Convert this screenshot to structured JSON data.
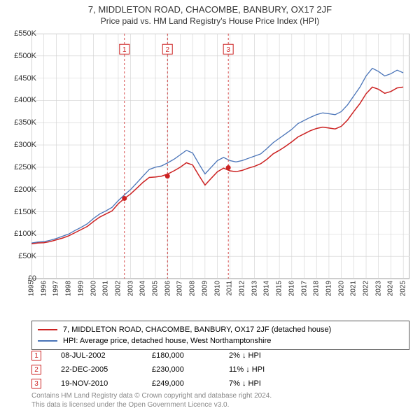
{
  "title": "7, MIDDLETON ROAD, CHACOMBE, BANBURY, OX17 2JF",
  "subtitle": "Price paid vs. HM Land Registry's House Price Index (HPI)",
  "chart": {
    "type": "line",
    "background_color": "#ffffff",
    "grid_color": "#d0d0d0",
    "plot_border_color": "#666666",
    "x_start_year": 1995,
    "x_end_year": 2025.5,
    "xticks": [
      1995,
      1996,
      1997,
      1998,
      1999,
      2000,
      2001,
      2002,
      2003,
      2004,
      2005,
      2006,
      2007,
      2008,
      2009,
      2010,
      2011,
      2012,
      2013,
      2014,
      2015,
      2016,
      2017,
      2018,
      2019,
      2020,
      2021,
      2022,
      2023,
      2024,
      2025
    ],
    "ylim": [
      0,
      550000
    ],
    "ytick_step": 50000,
    "ytick_labels": [
      "£0",
      "£50K",
      "£100K",
      "£150K",
      "£200K",
      "£250K",
      "£300K",
      "£350K",
      "£400K",
      "£450K",
      "£500K",
      "£550K"
    ],
    "series": [
      {
        "name": "hpi",
        "color": "#4a74b8",
        "width": 1.3,
        "points": [
          [
            1995.0,
            80000
          ],
          [
            1995.5,
            82000
          ],
          [
            1996.0,
            83000
          ],
          [
            1996.5,
            86000
          ],
          [
            1997.0,
            90000
          ],
          [
            1997.5,
            95000
          ],
          [
            1998.0,
            100000
          ],
          [
            1998.5,
            108000
          ],
          [
            1999.0,
            115000
          ],
          [
            1999.5,
            123000
          ],
          [
            2000.0,
            135000
          ],
          [
            2000.5,
            145000
          ],
          [
            2001.0,
            152000
          ],
          [
            2001.5,
            160000
          ],
          [
            2002.0,
            175000
          ],
          [
            2002.5,
            188000
          ],
          [
            2003.0,
            200000
          ],
          [
            2003.5,
            215000
          ],
          [
            2004.0,
            230000
          ],
          [
            2004.5,
            245000
          ],
          [
            2005.0,
            250000
          ],
          [
            2005.5,
            253000
          ],
          [
            2006.0,
            260000
          ],
          [
            2006.5,
            268000
          ],
          [
            2007.0,
            278000
          ],
          [
            2007.5,
            288000
          ],
          [
            2008.0,
            282000
          ],
          [
            2008.5,
            258000
          ],
          [
            2009.0,
            235000
          ],
          [
            2009.5,
            250000
          ],
          [
            2010.0,
            265000
          ],
          [
            2010.5,
            272000
          ],
          [
            2011.0,
            265000
          ],
          [
            2011.5,
            262000
          ],
          [
            2012.0,
            265000
          ],
          [
            2012.5,
            270000
          ],
          [
            2013.0,
            275000
          ],
          [
            2013.5,
            280000
          ],
          [
            2014.0,
            292000
          ],
          [
            2014.5,
            305000
          ],
          [
            2015.0,
            315000
          ],
          [
            2015.5,
            325000
          ],
          [
            2016.0,
            335000
          ],
          [
            2016.5,
            348000
          ],
          [
            2017.0,
            355000
          ],
          [
            2017.5,
            362000
          ],
          [
            2018.0,
            368000
          ],
          [
            2018.5,
            372000
          ],
          [
            2019.0,
            370000
          ],
          [
            2019.5,
            368000
          ],
          [
            2020.0,
            375000
          ],
          [
            2020.5,
            390000
          ],
          [
            2021.0,
            410000
          ],
          [
            2021.5,
            430000
          ],
          [
            2022.0,
            455000
          ],
          [
            2022.5,
            472000
          ],
          [
            2023.0,
            465000
          ],
          [
            2023.5,
            455000
          ],
          [
            2024.0,
            460000
          ],
          [
            2024.5,
            468000
          ],
          [
            2025.0,
            462000
          ]
        ]
      },
      {
        "name": "property",
        "color": "#cc2222",
        "width": 1.5,
        "points": [
          [
            1995.0,
            78000
          ],
          [
            1995.5,
            80000
          ],
          [
            1996.0,
            80500
          ],
          [
            1996.5,
            83000
          ],
          [
            1997.0,
            87000
          ],
          [
            1997.5,
            91000
          ],
          [
            1998.0,
            96000
          ],
          [
            1998.5,
            103000
          ],
          [
            1999.0,
            110000
          ],
          [
            1999.5,
            117000
          ],
          [
            2000.0,
            128000
          ],
          [
            2000.5,
            138000
          ],
          [
            2001.0,
            145000
          ],
          [
            2001.5,
            152000
          ],
          [
            2002.0,
            168000
          ],
          [
            2002.5,
            180000
          ],
          [
            2003.0,
            190000
          ],
          [
            2003.5,
            203000
          ],
          [
            2004.0,
            216000
          ],
          [
            2004.5,
            227000
          ],
          [
            2005.0,
            228000
          ],
          [
            2005.5,
            230000
          ],
          [
            2006.0,
            235000
          ],
          [
            2006.5,
            242000
          ],
          [
            2007.0,
            250000
          ],
          [
            2007.5,
            260000
          ],
          [
            2008.0,
            255000
          ],
          [
            2008.5,
            232000
          ],
          [
            2009.0,
            210000
          ],
          [
            2009.5,
            225000
          ],
          [
            2010.0,
            240000
          ],
          [
            2010.5,
            248000
          ],
          [
            2011.0,
            242000
          ],
          [
            2011.5,
            240000
          ],
          [
            2012.0,
            243000
          ],
          [
            2012.5,
            248000
          ],
          [
            2013.0,
            252000
          ],
          [
            2013.5,
            258000
          ],
          [
            2014.0,
            268000
          ],
          [
            2014.5,
            280000
          ],
          [
            2015.0,
            288000
          ],
          [
            2015.5,
            297000
          ],
          [
            2016.0,
            307000
          ],
          [
            2016.5,
            318000
          ],
          [
            2017.0,
            325000
          ],
          [
            2017.5,
            332000
          ],
          [
            2018.0,
            337000
          ],
          [
            2018.5,
            340000
          ],
          [
            2019.0,
            338000
          ],
          [
            2019.5,
            336000
          ],
          [
            2020.0,
            342000
          ],
          [
            2020.5,
            356000
          ],
          [
            2021.0,
            375000
          ],
          [
            2021.5,
            393000
          ],
          [
            2022.0,
            415000
          ],
          [
            2022.5,
            430000
          ],
          [
            2023.0,
            425000
          ],
          [
            2023.5,
            416000
          ],
          [
            2024.0,
            420000
          ],
          [
            2024.5,
            428000
          ],
          [
            2025.0,
            430000
          ]
        ]
      }
    ],
    "markers": [
      {
        "n": "1",
        "x": 2002.5,
        "y": 180000
      },
      {
        "n": "2",
        "x": 2005.97,
        "y": 230000
      },
      {
        "n": "3",
        "x": 2010.88,
        "y": 249000
      }
    ],
    "vline_color": "#cc2222",
    "vline_dash": "3,3",
    "marker_y_label": 515000
  },
  "legend": [
    {
      "swatch": "#cc2222",
      "text": "7, MIDDLETON ROAD, CHACOMBE, BANBURY, OX17 2JF (detached house)"
    },
    {
      "swatch": "#4a74b8",
      "text": "HPI: Average price, detached house, West Northamptonshire"
    }
  ],
  "transactions": [
    {
      "n": "1",
      "date": "08-JUL-2002",
      "price": "£180,000",
      "pct": "2% ↓ HPI"
    },
    {
      "n": "2",
      "date": "22-DEC-2005",
      "price": "£230,000",
      "pct": "11% ↓ HPI"
    },
    {
      "n": "3",
      "date": "19-NOV-2010",
      "price": "£249,000",
      "pct": "7% ↓ HPI"
    }
  ],
  "footer_line1": "Contains HM Land Registry data © Crown copyright and database right 2024.",
  "footer_line2": "This data is licensed under the Open Government Licence v3.0."
}
